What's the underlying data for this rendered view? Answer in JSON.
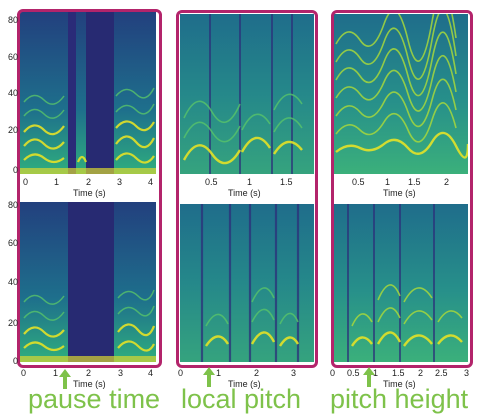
{
  "y_ticks": [
    "80",
    "60",
    "40",
    "20",
    "0"
  ],
  "x_title": "Time (s)",
  "columns": [
    {
      "top_xticks": [
        "0",
        "1",
        "2",
        "3",
        "4"
      ],
      "bottom_xticks": [
        "0",
        "1",
        "2",
        "3",
        "4"
      ]
    },
    {
      "top_xticks": [
        "0.5",
        "1",
        "1.5"
      ],
      "bottom_xticks": [
        "0",
        "1",
        "2",
        "3"
      ]
    },
    {
      "top_xticks": [
        "0.5",
        "1",
        "1.5",
        "2"
      ],
      "bottom_xticks": [
        "0",
        "0.5",
        "1",
        "1.5",
        "2",
        "2.5",
        "3"
      ]
    }
  ],
  "captions": {
    "left": "pause time",
    "middle": "local pitch",
    "right": "pitch height"
  },
  "colors": {
    "frame": "#b3246b",
    "caption": "#7ec24a",
    "spec_dark": "#2b2f7e",
    "spec_mid": "#1f8f8a",
    "spec_light": "#e8e820"
  }
}
